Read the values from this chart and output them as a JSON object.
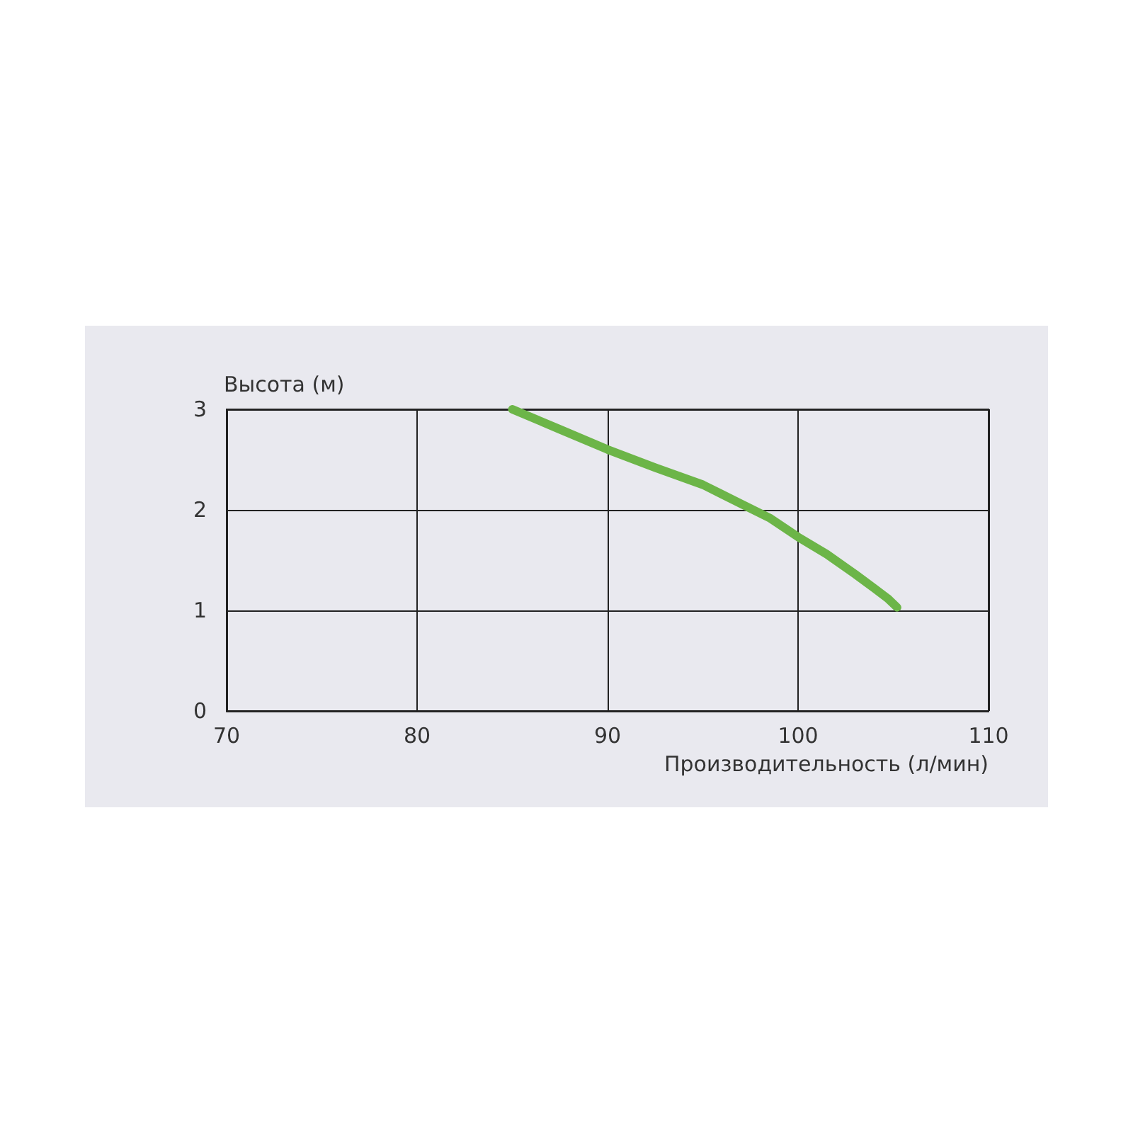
{
  "chart_data": {
    "type": "line",
    "xlabel": "Производительность (л/мин)",
    "ylabel": "Высота (м)",
    "x": [
      85,
      87.5,
      90,
      92.5,
      95,
      97,
      98.5,
      100,
      101.5,
      103,
      104,
      104.7,
      105.2
    ],
    "series": [
      {
        "color": "#6cb548",
        "values": [
          3.0,
          2.8,
          2.6,
          2.42,
          2.25,
          2.06,
          1.92,
          1.73,
          1.56,
          1.36,
          1.22,
          1.12,
          1.03
        ]
      }
    ],
    "xlim": [
      70,
      110
    ],
    "xticks": [
      70,
      80,
      90,
      100,
      110
    ],
    "ylim": [
      0,
      3
    ],
    "yticks": [
      0,
      1,
      2,
      3
    ],
    "grid": true,
    "marker": "none",
    "line_style": "solid"
  }
}
